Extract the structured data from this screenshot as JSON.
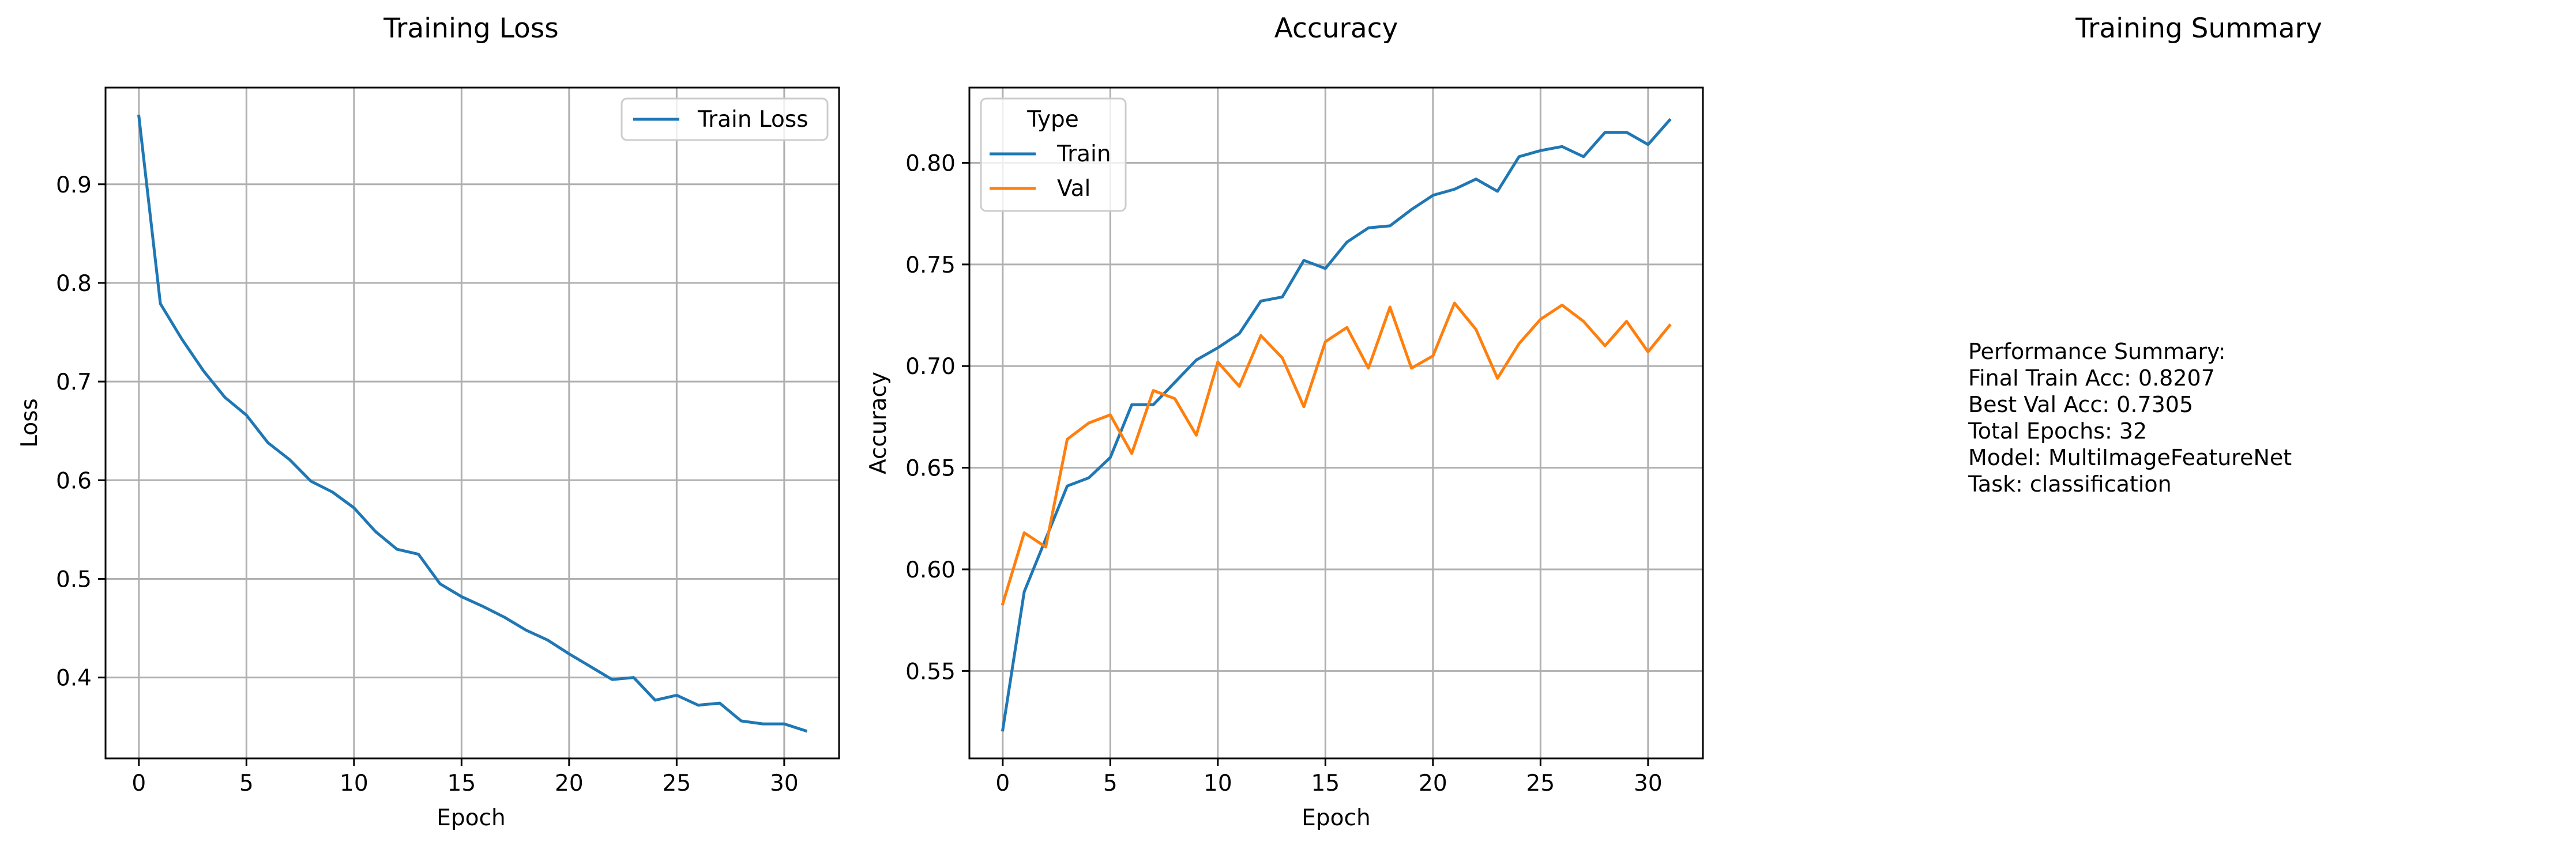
{
  "chart_data": [
    {
      "type": "line",
      "title": "Training Loss",
      "xlabel": "Epoch",
      "ylabel": "Loss",
      "xlim": [
        -1.55,
        32.55
      ],
      "ylim": [
        0.318,
        0.998
      ],
      "xticks": [
        0,
        5,
        10,
        15,
        20,
        25,
        30
      ],
      "yticks": [
        0.4,
        0.5,
        0.6,
        0.7,
        0.8,
        0.9
      ],
      "xtick_labels": [
        "0",
        "5",
        "10",
        "15",
        "20",
        "25",
        "30"
      ],
      "ytick_labels": [
        "0.4",
        "0.5",
        "0.6",
        "0.7",
        "0.8",
        "0.9"
      ],
      "grid": true,
      "legend": {
        "position": "top-right",
        "entries": [
          "Train Loss"
        ]
      },
      "x": [
        0,
        1,
        2,
        3,
        4,
        5,
        6,
        7,
        8,
        9,
        10,
        11,
        12,
        13,
        14,
        15,
        16,
        17,
        18,
        19,
        20,
        21,
        22,
        23,
        24,
        25,
        26,
        27,
        28,
        29,
        30,
        31
      ],
      "series": [
        {
          "name": "Train Loss",
          "color": "#1f77b4",
          "values": [
            0.969,
            0.779,
            0.743,
            0.711,
            0.684,
            0.666,
            0.638,
            0.621,
            0.599,
            0.588,
            0.572,
            0.548,
            0.53,
            0.525,
            0.495,
            0.482,
            0.472,
            0.461,
            0.448,
            0.438,
            0.424,
            0.411,
            0.398,
            0.4,
            0.377,
            0.382,
            0.372,
            0.374,
            0.356,
            0.353,
            0.353,
            0.346
          ]
        }
      ]
    },
    {
      "type": "line",
      "title": "Accuracy",
      "xlabel": "Epoch",
      "ylabel": "Accuracy",
      "xlim": [
        -1.55,
        32.55
      ],
      "ylim": [
        0.507,
        0.837
      ],
      "xticks": [
        0,
        5,
        10,
        15,
        20,
        25,
        30
      ],
      "yticks": [
        0.55,
        0.6,
        0.65,
        0.7,
        0.75,
        0.8
      ],
      "xtick_labels": [
        "0",
        "5",
        "10",
        "15",
        "20",
        "25",
        "30"
      ],
      "ytick_labels": [
        "0.55",
        "0.60",
        "0.65",
        "0.70",
        "0.75",
        "0.80"
      ],
      "grid": true,
      "legend": {
        "position": "top-left",
        "title": "Type",
        "entries": [
          "Train",
          "Val"
        ]
      },
      "x": [
        0,
        1,
        2,
        3,
        4,
        5,
        6,
        7,
        8,
        9,
        10,
        11,
        12,
        13,
        14,
        15,
        16,
        17,
        18,
        19,
        20,
        21,
        22,
        23,
        24,
        25,
        26,
        27,
        28,
        29,
        30,
        31
      ],
      "series": [
        {
          "name": "Train",
          "color": "#1f77b4",
          "values": [
            0.521,
            0.589,
            0.615,
            0.641,
            0.645,
            0.655,
            0.681,
            0.681,
            0.692,
            0.703,
            0.709,
            0.716,
            0.732,
            0.734,
            0.752,
            0.748,
            0.761,
            0.768,
            0.769,
            0.777,
            0.784,
            0.787,
            0.792,
            0.786,
            0.803,
            0.806,
            0.808,
            0.803,
            0.815,
            0.815,
            0.809,
            0.821
          ]
        },
        {
          "name": "Val",
          "color": "#ff7f0e",
          "values": [
            0.583,
            0.618,
            0.611,
            0.664,
            0.672,
            0.676,
            0.657,
            0.688,
            0.684,
            0.666,
            0.702,
            0.69,
            0.715,
            0.704,
            0.68,
            0.712,
            0.719,
            0.699,
            0.729,
            0.699,
            0.705,
            0.731,
            0.718,
            0.694,
            0.711,
            0.723,
            0.73,
            0.722,
            0.71,
            0.722,
            0.707,
            0.72
          ]
        }
      ]
    }
  ],
  "summary": {
    "title": "Training Summary",
    "lines": [
      "Performance Summary:",
      "Final Train Acc: 0.8207",
      "Best Val Acc: 0.7305",
      "Total Epochs: 32",
      "Model: MultiImageFeatureNet",
      "Task: classification"
    ]
  }
}
